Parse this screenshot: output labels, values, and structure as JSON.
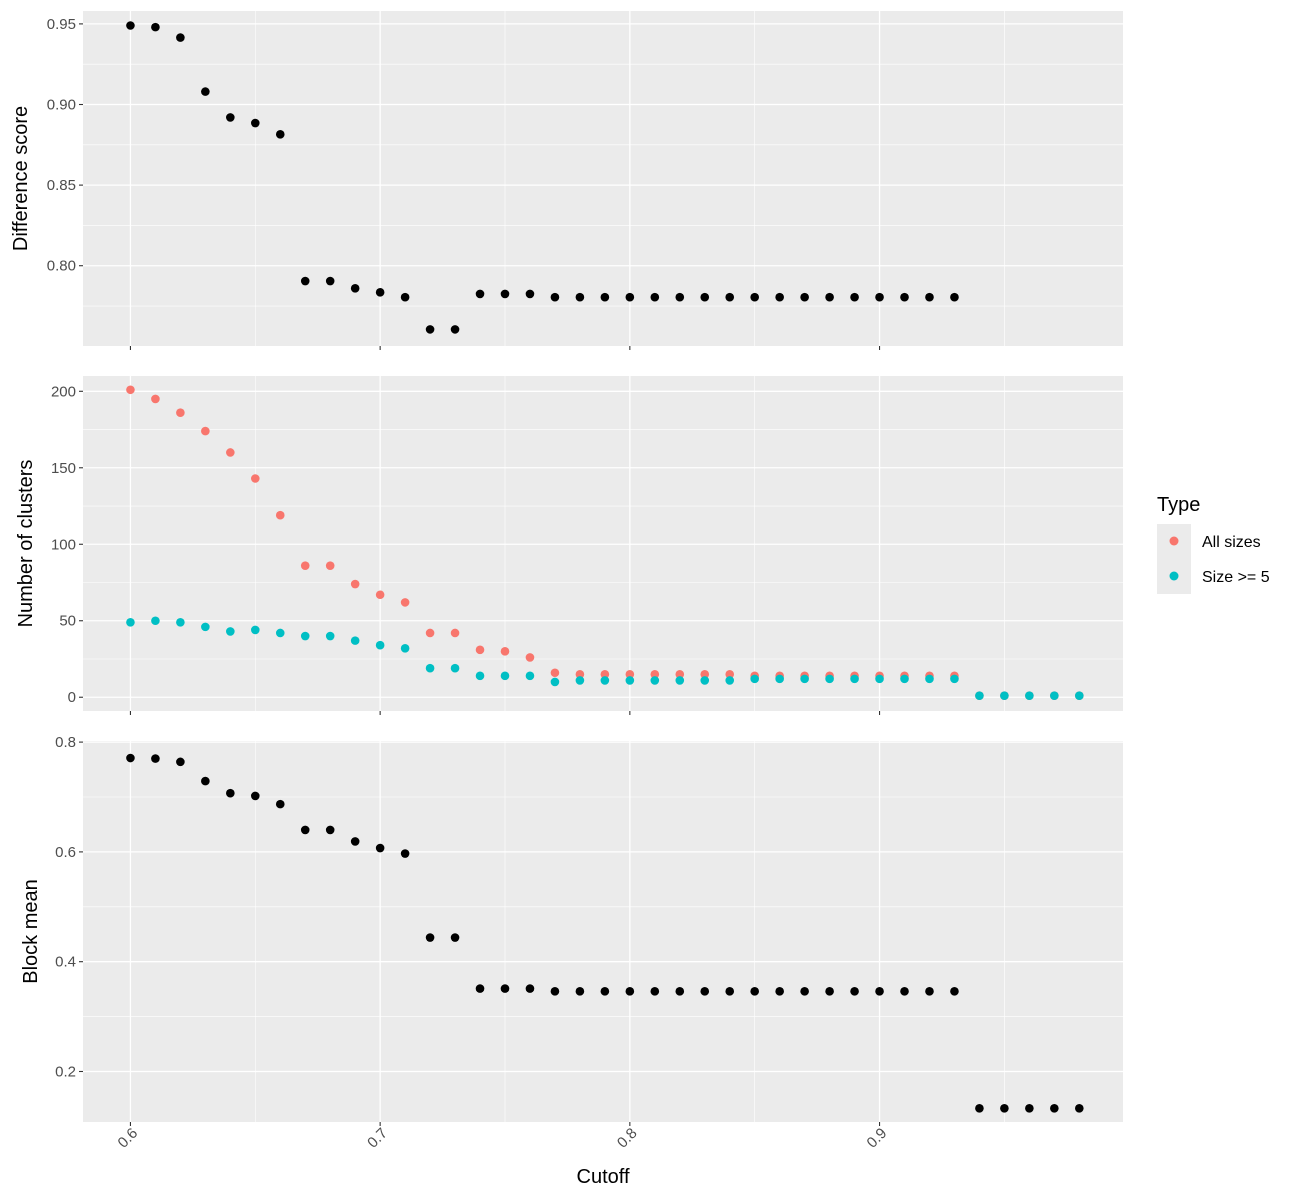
{
  "chart_data": {
    "type": "scatter",
    "xlabel": "Cutoff",
    "x_ticks": [
      "0.6",
      "0.7",
      "0.8",
      "0.9"
    ],
    "x_tick_values": [
      0.6,
      0.7,
      0.8,
      0.9
    ],
    "xlim": [
      0.581,
      0.9975
    ],
    "grid": true,
    "legend": {
      "title": "Type",
      "placement": "right",
      "entries": [
        {
          "label": "All sizes",
          "color": "#F8766D"
        },
        {
          "label": "Size >= 5",
          "color": "#00BFC4"
        }
      ]
    },
    "panels": [
      {
        "ylabel": "Difference score",
        "ylim": [
          0.7502,
          0.958
        ],
        "y_ticks": [
          "0.80",
          "0.85",
          "0.90",
          "0.95"
        ],
        "y_tick_values": [
          0.8,
          0.85,
          0.9,
          0.95
        ],
        "series": [
          {
            "color": "#000000",
            "x": [
              0.6,
              0.61,
              0.62,
              0.63,
              0.64,
              0.65,
              0.66,
              0.67,
              0.68,
              0.69,
              0.7,
              0.71,
              0.72,
              0.73,
              0.74,
              0.75,
              0.76,
              0.77,
              0.78,
              0.79,
              0.8,
              0.81,
              0.82,
              0.83,
              0.84,
              0.85,
              0.86,
              0.87,
              0.88,
              0.89,
              0.9,
              0.91,
              0.92,
              0.93
            ],
            "y": [
              0.949,
              0.948,
              0.9415,
              0.908,
              0.892,
              0.8885,
              0.8815,
              0.7905,
              0.7905,
              0.786,
              0.7835,
              0.7805,
              0.7605,
              0.7605,
              0.7825,
              0.7825,
              0.7825,
              0.7805,
              0.7805,
              0.7805,
              0.7805,
              0.7805,
              0.7805,
              0.7805,
              0.7805,
              0.7805,
              0.7805,
              0.7805,
              0.7805,
              0.7805,
              0.7805,
              0.7805,
              0.7805,
              0.7805
            ]
          }
        ]
      },
      {
        "ylabel": "Number of clusters",
        "ylim": [
          -9,
          210
        ],
        "y_ticks": [
          "0",
          "50",
          "100",
          "150",
          "200"
        ],
        "y_tick_values": [
          0,
          50,
          100,
          150,
          200
        ],
        "series": [
          {
            "name": "All sizes",
            "color": "#F8766D",
            "x": [
              0.6,
              0.61,
              0.62,
              0.63,
              0.64,
              0.65,
              0.66,
              0.67,
              0.68,
              0.69,
              0.7,
              0.71,
              0.72,
              0.73,
              0.74,
              0.75,
              0.76,
              0.77,
              0.78,
              0.79,
              0.8,
              0.81,
              0.82,
              0.83,
              0.84,
              0.85,
              0.86,
              0.87,
              0.88,
              0.89,
              0.9,
              0.91,
              0.92,
              0.93,
              0.94,
              0.95,
              0.96,
              0.97,
              0.98
            ],
            "y": [
              201,
              195,
              186,
              174,
              160,
              143,
              119,
              86,
              86,
              74,
              67,
              62,
              42,
              42,
              31,
              30,
              26,
              16,
              15,
              15,
              15,
              15,
              15,
              15,
              15,
              14,
              14,
              14,
              14,
              14,
              14,
              14,
              14,
              14,
              1,
              1,
              1,
              1,
              1
            ]
          },
          {
            "name": "Size >= 5",
            "color": "#00BFC4",
            "x": [
              0.6,
              0.61,
              0.62,
              0.63,
              0.64,
              0.65,
              0.66,
              0.67,
              0.68,
              0.69,
              0.7,
              0.71,
              0.72,
              0.73,
              0.74,
              0.75,
              0.76,
              0.77,
              0.78,
              0.79,
              0.8,
              0.81,
              0.82,
              0.83,
              0.84,
              0.85,
              0.86,
              0.87,
              0.88,
              0.89,
              0.9,
              0.91,
              0.92,
              0.93,
              0.94,
              0.95,
              0.96,
              0.97,
              0.98
            ],
            "y": [
              49,
              50,
              49,
              46,
              43,
              44,
              42,
              40,
              40,
              37,
              34,
              32,
              19,
              19,
              14,
              14,
              14,
              10,
              11,
              11,
              11,
              11,
              11,
              11,
              11,
              12,
              12,
              12,
              12,
              12,
              12,
              12,
              12,
              12,
              1,
              1,
              1,
              1,
              1
            ]
          }
        ]
      },
      {
        "ylabel": "Block mean",
        "ylim": [
          0.108,
          0.802
        ],
        "y_ticks": [
          "0.2",
          "0.4",
          "0.6",
          "0.8"
        ],
        "y_tick_values": [
          0.2,
          0.4,
          0.6,
          0.8
        ],
        "series": [
          {
            "color": "#000000",
            "x": [
              0.6,
              0.61,
              0.62,
              0.63,
              0.64,
              0.65,
              0.66,
              0.67,
              0.68,
              0.69,
              0.7,
              0.71,
              0.72,
              0.73,
              0.74,
              0.75,
              0.76,
              0.77,
              0.78,
              0.79,
              0.8,
              0.81,
              0.82,
              0.83,
              0.84,
              0.85,
              0.86,
              0.87,
              0.88,
              0.89,
              0.9,
              0.91,
              0.92,
              0.93,
              0.94,
              0.95,
              0.96,
              0.97,
              0.98
            ],
            "y": [
              0.771,
              0.77,
              0.764,
              0.729,
              0.707,
              0.702,
              0.687,
              0.64,
              0.64,
              0.619,
              0.607,
              0.597,
              0.444,
              0.444,
              0.351,
              0.351,
              0.351,
              0.346,
              0.346,
              0.346,
              0.346,
              0.346,
              0.346,
              0.346,
              0.346,
              0.346,
              0.346,
              0.346,
              0.346,
              0.346,
              0.346,
              0.346,
              0.346,
              0.346,
              0.133,
              0.133,
              0.133,
              0.133,
              0.133
            ]
          }
        ]
      }
    ]
  }
}
